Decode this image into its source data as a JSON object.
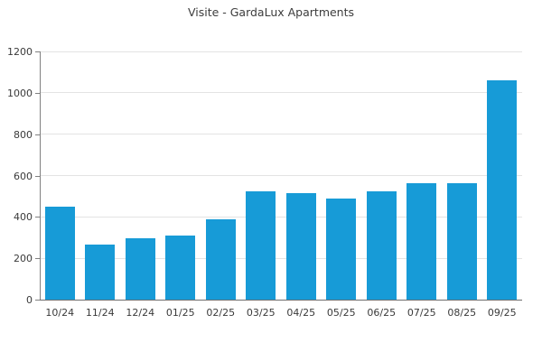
{
  "chart_data": {
    "type": "bar",
    "title": "Visite - GardaLux Apartments",
    "categories": [
      "10/24",
      "11/24",
      "12/24",
      "01/25",
      "02/25",
      "03/25",
      "04/25",
      "05/25",
      "06/25",
      "07/25",
      "08/25",
      "09/25"
    ],
    "values": [
      450,
      265,
      295,
      310,
      390,
      525,
      515,
      490,
      525,
      565,
      565,
      1060
    ],
    "xlabel": "",
    "ylabel": "",
    "ylim": [
      0,
      1200
    ],
    "yticks": [
      0,
      200,
      400,
      600,
      800,
      1000,
      1200
    ],
    "ytick_labels": [
      "0",
      "200",
      "400",
      "600",
      "800",
      "1000",
      "1200"
    ],
    "legend_position": "none",
    "grid": "horizontal"
  },
  "colors": {
    "bar": "#179bd7",
    "gridline": "#e3e3e3",
    "spine": "#808080",
    "text": "#3a3a3a",
    "background": "#ffffff"
  }
}
